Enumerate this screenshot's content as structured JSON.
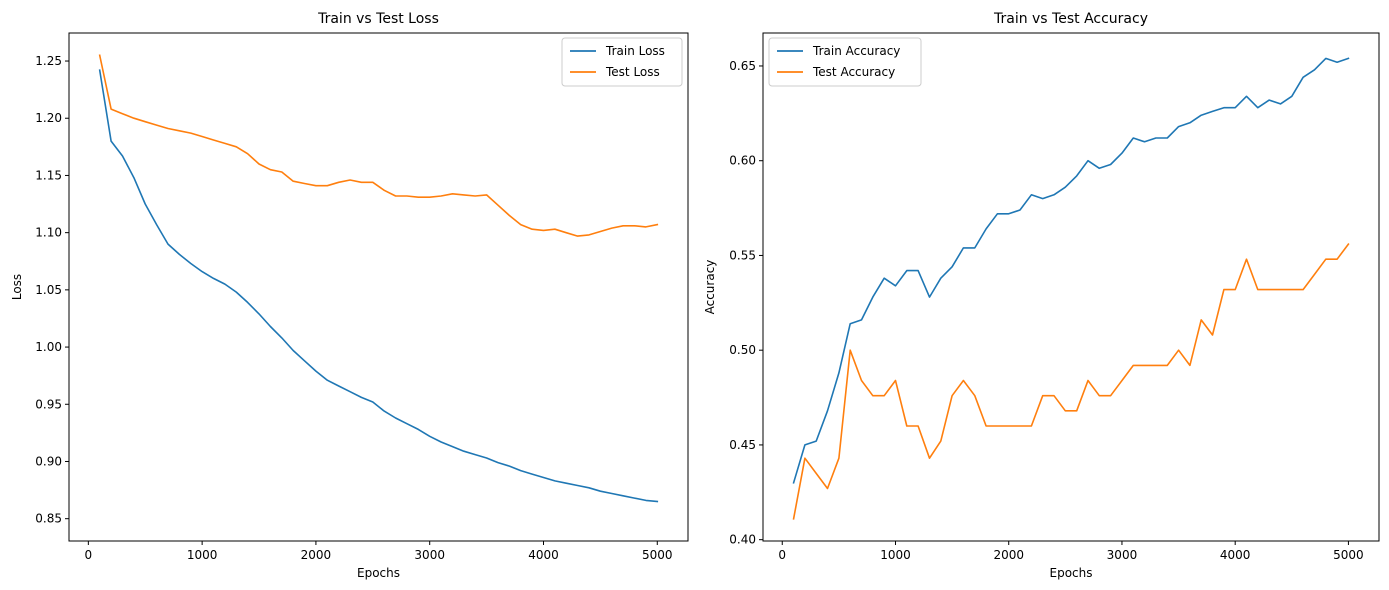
{
  "chart_data": [
    {
      "type": "line",
      "title": "Train vs Test Loss",
      "xlabel": "Epochs",
      "ylabel": "Loss",
      "xlim": [
        -170,
        5270
      ],
      "ylim": [
        0.8305,
        1.2745
      ],
      "xticks": [
        0,
        1000,
        2000,
        3000,
        4000,
        5000
      ],
      "yticks": [
        0.85,
        0.9,
        0.95,
        1.0,
        1.05,
        1.1,
        1.15,
        1.2,
        1.25
      ],
      "ytick_decimals": 2,
      "grid": false,
      "legend_position": "top-right",
      "x": [
        100,
        200,
        300,
        400,
        500,
        600,
        700,
        800,
        900,
        1000,
        1100,
        1200,
        1300,
        1400,
        1500,
        1600,
        1700,
        1800,
        1900,
        2000,
        2100,
        2200,
        2300,
        2400,
        2500,
        2600,
        2700,
        2800,
        2900,
        3000,
        3100,
        3200,
        3300,
        3400,
        3500,
        3600,
        3700,
        3800,
        3900,
        4000,
        4100,
        4200,
        4300,
        4400,
        4500,
        4600,
        4700,
        4800,
        4900,
        5000
      ],
      "series": [
        {
          "name": "Train Loss",
          "color": "#1f77b4",
          "values": [
            1.242,
            1.18,
            1.167,
            1.148,
            1.125,
            1.107,
            1.09,
            1.081,
            1.073,
            1.066,
            1.06,
            1.055,
            1.048,
            1.039,
            1.029,
            1.018,
            1.008,
            0.997,
            0.988,
            0.979,
            0.971,
            0.966,
            0.961,
            0.956,
            0.952,
            0.944,
            0.938,
            0.933,
            0.928,
            0.922,
            0.917,
            0.913,
            0.909,
            0.906,
            0.903,
            0.899,
            0.896,
            0.892,
            0.889,
            0.886,
            0.883,
            0.881,
            0.879,
            0.877,
            0.874,
            0.872,
            0.87,
            0.868,
            0.866,
            0.865
          ]
        },
        {
          "name": "Test Loss",
          "color": "#ff7f0e",
          "values": [
            1.255,
            1.208,
            1.204,
            1.2,
            1.197,
            1.194,
            1.191,
            1.189,
            1.187,
            1.184,
            1.181,
            1.178,
            1.175,
            1.169,
            1.16,
            1.155,
            1.153,
            1.145,
            1.143,
            1.141,
            1.141,
            1.144,
            1.146,
            1.144,
            1.144,
            1.137,
            1.132,
            1.132,
            1.131,
            1.131,
            1.132,
            1.134,
            1.133,
            1.132,
            1.133,
            1.124,
            1.115,
            1.107,
            1.103,
            1.102,
            1.103,
            1.1,
            1.097,
            1.098,
            1.101,
            1.104,
            1.106,
            1.106,
            1.105,
            1.107
          ]
        }
      ]
    },
    {
      "type": "line",
      "title": "Train vs Test Accuracy",
      "xlabel": "Epochs",
      "ylabel": "Accuracy",
      "xlim": [
        -170,
        5270
      ],
      "ylim": [
        0.3993,
        0.6674
      ],
      "xticks": [
        0,
        1000,
        2000,
        3000,
        4000,
        5000
      ],
      "yticks": [
        0.4,
        0.45,
        0.5,
        0.55,
        0.6,
        0.65
      ],
      "ytick_decimals": 2,
      "grid": false,
      "legend_position": "top-left",
      "x": [
        100,
        200,
        300,
        400,
        500,
        600,
        700,
        800,
        900,
        1000,
        1100,
        1200,
        1300,
        1400,
        1500,
        1600,
        1700,
        1800,
        1900,
        2000,
        2100,
        2200,
        2300,
        2400,
        2500,
        2600,
        2700,
        2800,
        2900,
        3000,
        3100,
        3200,
        3300,
        3400,
        3500,
        3600,
        3700,
        3800,
        3900,
        4000,
        4100,
        4200,
        4300,
        4400,
        4500,
        4600,
        4700,
        4800,
        4900,
        5000
      ],
      "series": [
        {
          "name": "Train Accuracy",
          "color": "#1f77b4",
          "values": [
            0.43,
            0.45,
            0.452,
            0.468,
            0.488,
            0.514,
            0.516,
            0.528,
            0.538,
            0.534,
            0.542,
            0.542,
            0.528,
            0.538,
            0.544,
            0.554,
            0.554,
            0.564,
            0.572,
            0.572,
            0.574,
            0.582,
            0.58,
            0.582,
            0.586,
            0.592,
            0.6,
            0.596,
            0.598,
            0.604,
            0.612,
            0.61,
            0.612,
            0.612,
            0.618,
            0.62,
            0.624,
            0.626,
            0.628,
            0.628,
            0.634,
            0.628,
            0.632,
            0.63,
            0.634,
            0.644,
            0.648,
            0.654,
            0.652,
            0.654
          ]
        },
        {
          "name": "Test Accuracy",
          "color": "#ff7f0e",
          "values": [
            0.411,
            0.443,
            0.435,
            0.427,
            0.443,
            0.5,
            0.484,
            0.476,
            0.476,
            0.484,
            0.46,
            0.46,
            0.443,
            0.452,
            0.476,
            0.484,
            0.476,
            0.46,
            0.46,
            0.46,
            0.46,
            0.46,
            0.476,
            0.476,
            0.468,
            0.468,
            0.484,
            0.476,
            0.476,
            0.484,
            0.492,
            0.492,
            0.492,
            0.492,
            0.5,
            0.492,
            0.516,
            0.508,
            0.532,
            0.532,
            0.548,
            0.532,
            0.532,
            0.532,
            0.532,
            0.532,
            0.54,
            0.548,
            0.548,
            0.556
          ]
        }
      ]
    }
  ]
}
